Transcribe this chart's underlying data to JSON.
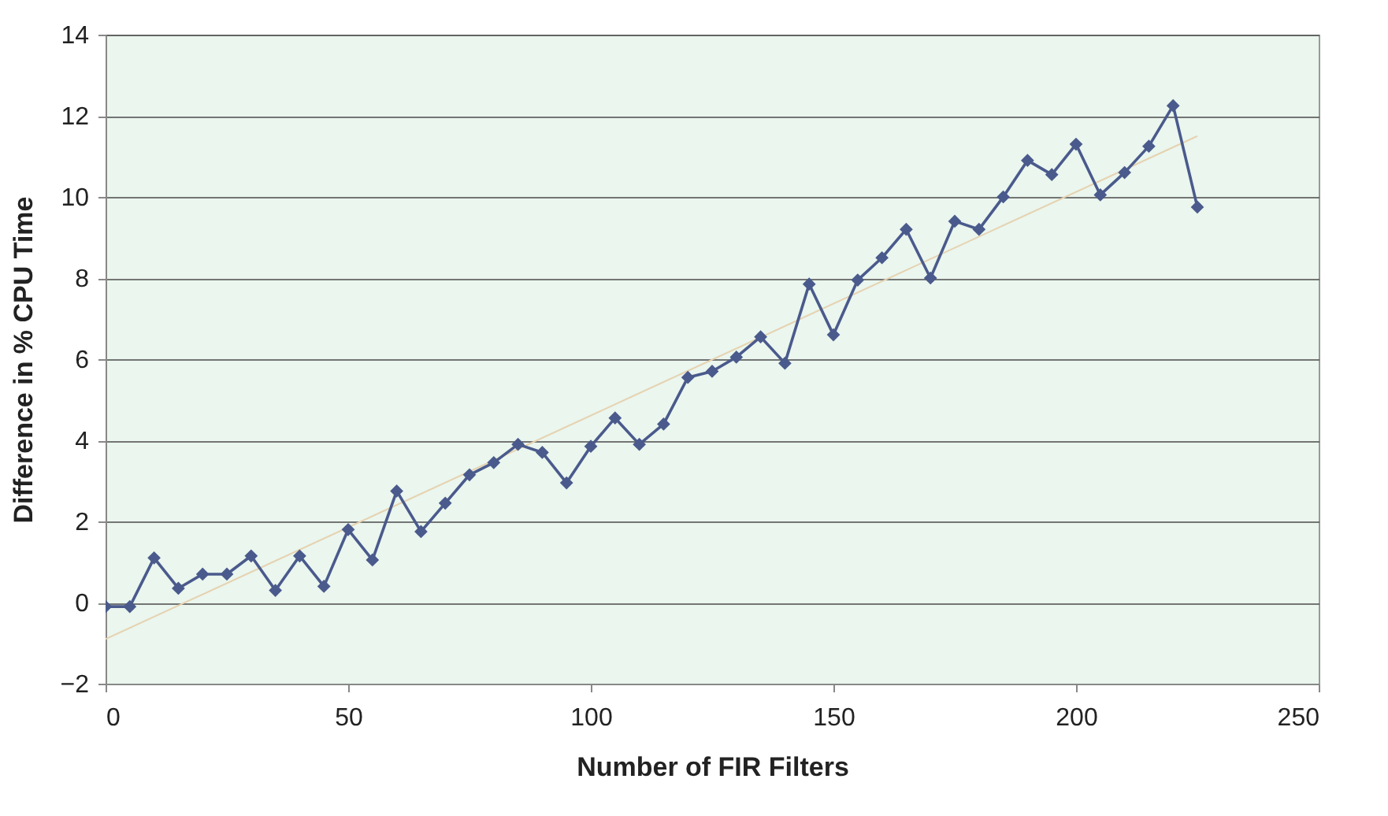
{
  "chart_data": {
    "type": "line",
    "xlabel": "Number of FIR Filters",
    "ylabel": "Difference in % CPU Time",
    "xlim": [
      0,
      250
    ],
    "xticks": [
      0,
      50,
      100,
      150,
      200,
      250
    ],
    "ylim": [
      -2,
      14
    ],
    "yticks": [
      -2,
      0,
      2,
      4,
      6,
      8,
      10,
      12,
      14
    ],
    "grid": "y",
    "marker": "diamond",
    "line_style": "solid",
    "x": [
      0,
      5,
      10,
      15,
      20,
      25,
      30,
      35,
      40,
      45,
      50,
      55,
      60,
      65,
      70,
      75,
      80,
      85,
      90,
      95,
      100,
      105,
      110,
      115,
      120,
      125,
      130,
      135,
      140,
      145,
      150,
      155,
      160,
      165,
      170,
      175,
      180,
      185,
      190,
      195,
      200,
      205,
      210,
      215,
      220,
      225
    ],
    "series": [
      {
        "color": "#4a5a8c",
        "values": [
          -0.1,
          -0.1,
          1.1,
          0.35,
          0.7,
          0.7,
          1.15,
          0.3,
          1.15,
          0.4,
          1.8,
          1.05,
          2.75,
          1.75,
          2.45,
          3.15,
          3.45,
          3.9,
          3.7,
          2.95,
          3.85,
          4.55,
          3.9,
          4.4,
          5.55,
          5.7,
          6.05,
          6.55,
          5.9,
          7.85,
          6.6,
          7.95,
          8.5,
          9.2,
          8.0,
          9.4,
          9.2,
          10.0,
          10.9,
          10.55,
          11.3,
          10.05,
          10.6,
          11.25,
          12.25,
          9.75
        ]
      },
      {
        "type": "line",
        "color": "#e6d2b0",
        "marker": "none",
        "x": [
          0,
          225
        ],
        "values": [
          -0.9,
          11.5
        ]
      }
    ]
  }
}
